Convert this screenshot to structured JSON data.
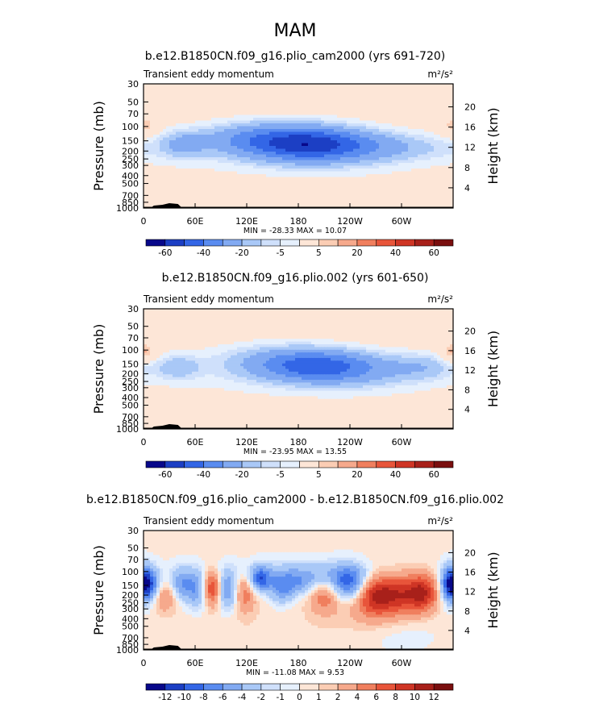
{
  "figure_title": "MAM",
  "colors": {
    "blue_scale": [
      "#08088a",
      "#1c3fc4",
      "#3366e6",
      "#5a8cf0",
      "#82aaf2",
      "#a9c8f7",
      "#cfe0fb",
      "#e6f0fd"
    ],
    "red_scale": [
      "#fde6d7",
      "#fbcdb4",
      "#f6a98c",
      "#f07f5e",
      "#e8553a",
      "#cf3525",
      "#a8201a",
      "#7a0f0f"
    ],
    "contour_fill_low": "#cfe0fb",
    "contour_fill_high": "#fde6d7",
    "terrain": "#000000"
  },
  "chart_data": [
    {
      "type": "heatmap",
      "title": "b.e12.B1850CN.f09_g16.plio_cam2000 (yrs 691-720)",
      "left_label": "Transient eddy momentum",
      "units": "m²/s²",
      "xlabel": "",
      "ylabel": "Pressure (mb)",
      "y2label": "Height (km)",
      "x_ticks": [
        "0",
        "60E",
        "120E",
        "180",
        "120W",
        "60W"
      ],
      "x_tick_values": [
        0,
        60,
        120,
        180,
        240,
        300
      ],
      "xlim": [
        0,
        360
      ],
      "y_ticks": [
        "30",
        "50",
        "70",
        "100",
        "150",
        "200",
        "250",
        "300",
        "400",
        "500",
        "700",
        "850",
        "1000"
      ],
      "y_tick_values": [
        30,
        50,
        70,
        100,
        150,
        200,
        250,
        300,
        400,
        500,
        700,
        850,
        1000
      ],
      "ylim": [
        30,
        1000
      ],
      "y2_ticks": [
        "4",
        "8",
        "12",
        "16",
        "20"
      ],
      "y2_tick_values": [
        4,
        8,
        12,
        16,
        20
      ],
      "stats": "MIN = -28.33   MAX =  10.07",
      "colorbar_levels": [
        "-60",
        "-40",
        "-20",
        "-5",
        "5",
        "20",
        "40",
        "60"
      ],
      "blobs": [
        {
          "lon": 185,
          "p": 165,
          "v": -28.3,
          "w": 45,
          "h": 0.34
        },
        {
          "lon": 150,
          "p": 135,
          "v": -14,
          "w": 65,
          "h": 0.45
        },
        {
          "lon": 225,
          "p": 170,
          "v": -14,
          "w": 50,
          "h": 0.38
        },
        {
          "lon": 45,
          "p": 165,
          "v": -14,
          "w": 18,
          "h": 0.28
        },
        {
          "lon": 115,
          "p": 140,
          "v": -10,
          "w": 40,
          "h": 0.3
        },
        {
          "lon": 300,
          "p": 180,
          "v": -11,
          "w": 60,
          "h": 0.3
        },
        {
          "lon": 180,
          "p": 190,
          "v": -9,
          "w": 150,
          "h": 0.55
        },
        {
          "lon": 140,
          "p": 450,
          "v": -3,
          "w": 90,
          "h": 0.9
        },
        {
          "lon": 300,
          "p": 500,
          "v": -3,
          "w": 80,
          "h": 0.9
        },
        {
          "lon": 358,
          "p": 100,
          "v": 10.1,
          "w": 10,
          "h": 0.2
        },
        {
          "lon": 5,
          "p": 105,
          "v": 6,
          "w": 8,
          "h": 0.2
        }
      ]
    },
    {
      "type": "heatmap",
      "title": "b.e12.B1850CN.f09_g16.plio.002 (yrs 601-650)",
      "left_label": "Transient eddy momentum",
      "units": "m²/s²",
      "xlabel": "",
      "ylabel": "Pressure (mb)",
      "y2label": "Height (km)",
      "x_ticks": [
        "0",
        "60E",
        "120E",
        "180",
        "120W",
        "60W"
      ],
      "x_tick_values": [
        0,
        60,
        120,
        180,
        240,
        300
      ],
      "xlim": [
        0,
        360
      ],
      "y_ticks": [
        "30",
        "50",
        "70",
        "100",
        "150",
        "200",
        "250",
        "300",
        "400",
        "500",
        "700",
        "850",
        "1000"
      ],
      "y_tick_values": [
        30,
        50,
        70,
        100,
        150,
        200,
        250,
        300,
        400,
        500,
        700,
        850,
        1000
      ],
      "ylim": [
        30,
        1000
      ],
      "y2_ticks": [
        "4",
        "8",
        "12",
        "16",
        "20"
      ],
      "y2_tick_values": [
        4,
        8,
        12,
        16,
        20
      ],
      "stats": "MIN = -23.95   MAX =  13.55",
      "colorbar_levels": [
        "-60",
        "-40",
        "-20",
        "-5",
        "5",
        "20",
        "40",
        "60"
      ],
      "blobs": [
        {
          "lon": 200,
          "p": 160,
          "v": -23.9,
          "w": 45,
          "h": 0.32
        },
        {
          "lon": 160,
          "p": 130,
          "v": -14,
          "w": 60,
          "h": 0.42
        },
        {
          "lon": 250,
          "p": 180,
          "v": -13,
          "w": 55,
          "h": 0.38
        },
        {
          "lon": 40,
          "p": 165,
          "v": -13,
          "w": 18,
          "h": 0.28
        },
        {
          "lon": 330,
          "p": 160,
          "v": -11,
          "w": 28,
          "h": 0.3
        },
        {
          "lon": 180,
          "p": 180,
          "v": -9,
          "w": 160,
          "h": 0.55
        },
        {
          "lon": 140,
          "p": 450,
          "v": -3,
          "w": 90,
          "h": 0.9
        },
        {
          "lon": 300,
          "p": 500,
          "v": -3,
          "w": 80,
          "h": 0.9
        },
        {
          "lon": 358,
          "p": 105,
          "v": 13.5,
          "w": 10,
          "h": 0.2
        },
        {
          "lon": 3,
          "p": 110,
          "v": 7,
          "w": 8,
          "h": 0.2
        }
      ]
    },
    {
      "type": "heatmap",
      "title": "b.e12.B1850CN.f09_g16.plio_cam2000 - b.e12.B1850CN.f09_g16.plio.002",
      "left_label": "Transient eddy momentum",
      "units": "m²/s²",
      "xlabel": "",
      "ylabel": "Pressure (mb)",
      "y2label": "Height (km)",
      "x_ticks": [
        "0",
        "60E",
        "120E",
        "180",
        "120W",
        "60W"
      ],
      "x_tick_values": [
        0,
        60,
        120,
        180,
        240,
        300
      ],
      "xlim": [
        0,
        360
      ],
      "y_ticks": [
        "30",
        "50",
        "70",
        "100",
        "150",
        "200",
        "250",
        "300",
        "400",
        "500",
        "700",
        "850",
        "1000"
      ],
      "y_tick_values": [
        30,
        50,
        70,
        100,
        150,
        200,
        250,
        300,
        400,
        500,
        700,
        850,
        1000
      ],
      "ylim": [
        30,
        1000
      ],
      "y2_ticks": [
        "4",
        "8",
        "12",
        "16",
        "20"
      ],
      "y2_tick_values": [
        4,
        8,
        12,
        16,
        20
      ],
      "stats": "MIN = -11.08   MAX =   9.53",
      "colorbar_levels": [
        "-12",
        "-10",
        "-8",
        "-6",
        "-4",
        "-2",
        "-1",
        "0",
        "1",
        "2",
        "4",
        "6",
        "8",
        "10",
        "12"
      ],
      "blobs": [
        {
          "lon": 5,
          "p": 145,
          "v": -11.1,
          "w": 9,
          "h": 0.35
        },
        {
          "lon": 25,
          "p": 210,
          "v": 4,
          "w": 10,
          "h": 0.3
        },
        {
          "lon": 45,
          "p": 145,
          "v": -6,
          "w": 10,
          "h": 0.35
        },
        {
          "lon": 62,
          "p": 175,
          "v": -5,
          "w": 8,
          "h": 0.4
        },
        {
          "lon": 80,
          "p": 160,
          "v": 8,
          "w": 7,
          "h": 0.35
        },
        {
          "lon": 98,
          "p": 180,
          "v": -6,
          "w": 8,
          "h": 0.4
        },
        {
          "lon": 118,
          "p": 180,
          "v": 5,
          "w": 9,
          "h": 0.4
        },
        {
          "lon": 135,
          "p": 125,
          "v": -8,
          "w": 8,
          "h": 0.25
        },
        {
          "lon": 160,
          "p": 185,
          "v": -4,
          "w": 10,
          "h": 0.3
        },
        {
          "lon": 175,
          "p": 145,
          "v": -4,
          "w": 20,
          "h": 0.25
        },
        {
          "lon": 210,
          "p": 200,
          "v": 5,
          "w": 12,
          "h": 0.35
        },
        {
          "lon": 240,
          "p": 145,
          "v": -8,
          "w": 15,
          "h": 0.35
        },
        {
          "lon": 200,
          "p": 110,
          "v": -4,
          "w": 70,
          "h": 0.3
        },
        {
          "lon": 270,
          "p": 190,
          "v": 9.5,
          "w": 16,
          "h": 0.45
        },
        {
          "lon": 300,
          "p": 190,
          "v": 7,
          "w": 15,
          "h": 0.45
        },
        {
          "lon": 325,
          "p": 185,
          "v": 9,
          "w": 12,
          "h": 0.4
        },
        {
          "lon": 355,
          "p": 145,
          "v": -8,
          "w": 7,
          "h": 0.35
        },
        {
          "lon": 180,
          "p": 500,
          "v": 0.5,
          "w": 180,
          "h": 0.9
        },
        {
          "lon": 300,
          "p": 600,
          "v": -1.2,
          "w": 35,
          "h": 0.5
        },
        {
          "lon": 260,
          "p": 300,
          "v": 1.5,
          "w": 30,
          "h": 0.4
        }
      ]
    }
  ]
}
